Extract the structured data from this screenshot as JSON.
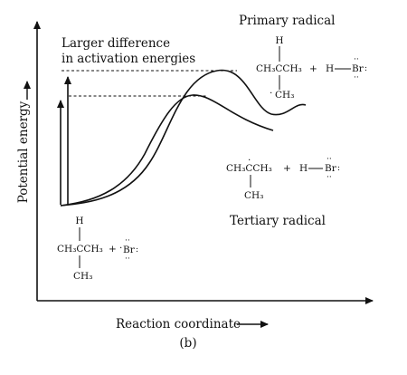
{
  "figure": {
    "caption": "(b)",
    "x_axis_label": "Reaction coordinate",
    "y_axis_label": "Potential energy",
    "annotation": [
      "Larger difference",
      "in activation energies"
    ],
    "primary_label": "Primary radical",
    "tertiary_label": "Tertiary radical"
  },
  "reactant": {
    "top_h": "H",
    "main": "CH₃CCH₃",
    "plus": "+",
    "br": "Br",
    "bottom": "CH₃"
  },
  "primary_product": {
    "top_h": "H",
    "main": "CH₃CCH₃",
    "plus": "+",
    "h": "H",
    "br": "Br",
    "bottom": "CH₃"
  },
  "tertiary_product": {
    "main": "CH₃CCH₃",
    "plus": "+",
    "h": "H",
    "br": "Br",
    "bottom": "CH₃"
  }
}
